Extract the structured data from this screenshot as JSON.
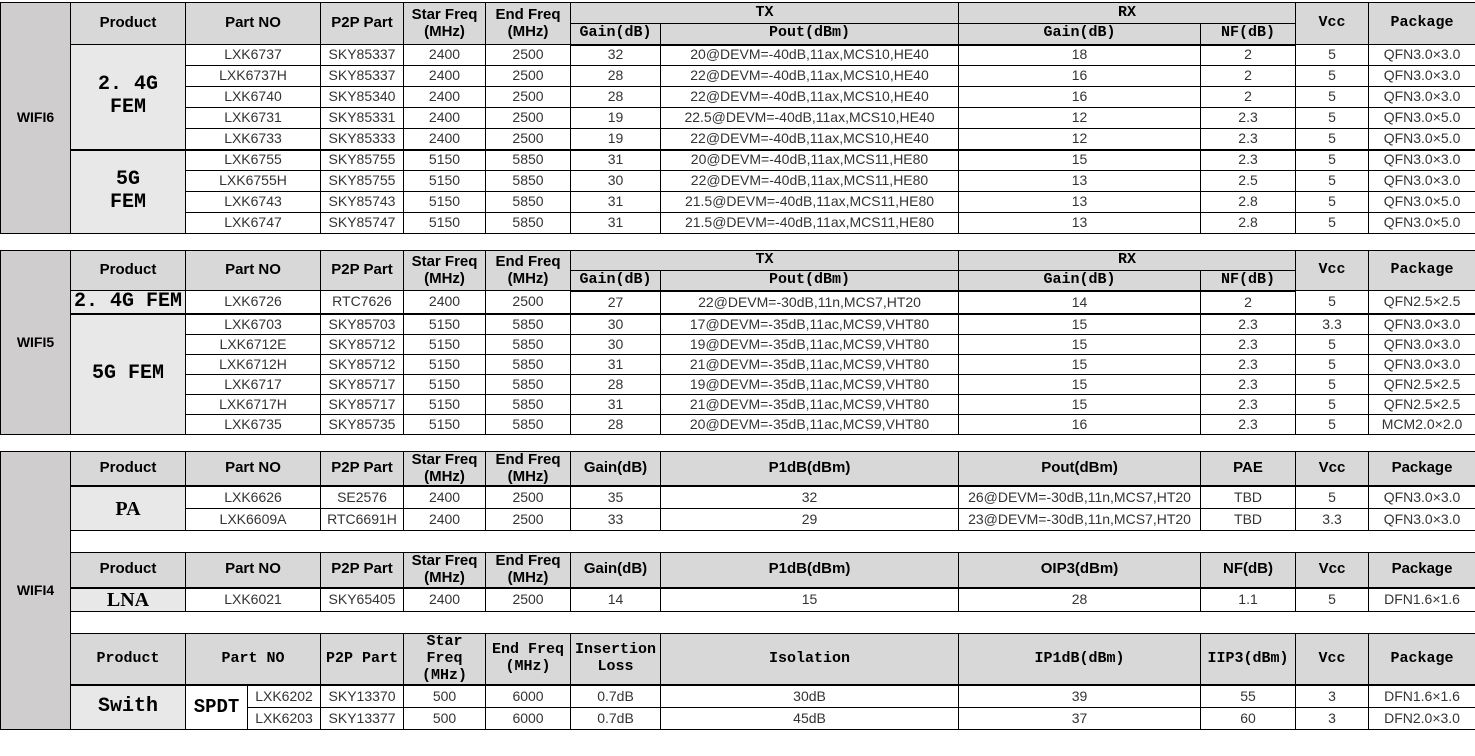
{
  "colors": {
    "header_bg": "#d8d8d8",
    "product_bg": "#e9e8e8",
    "side_label_bg": "#cfcdcd",
    "border": "#000000"
  },
  "wifi6": {
    "label": "WIFI6",
    "header": {
      "product": "Product",
      "part_no": "Part NO",
      "p2p_part": "P2P Part",
      "star_freq": "Star Freq\n(MHz)",
      "end_freq": "End Freq\n(MHz)",
      "tx": "TX",
      "rx": "RX",
      "tx_gain": "Gain(dB)",
      "tx_pout": "Pout(dBm)",
      "rx_gain": "Gain(dB)",
      "rx_nf": "NF(dB)",
      "vcc": "Vcc",
      "package": "Package"
    },
    "groups": [
      {
        "product": "2. 4G\nFEM",
        "rows": [
          [
            "LXK6737",
            "SKY85337",
            "2400",
            "2500",
            "32",
            "20@DEVM=-40dB,11ax,MCS10,HE40",
            "18",
            "2",
            "5",
            "QFN3.0×3.0"
          ],
          [
            "LXK6737H",
            "SKY85337",
            "2400",
            "2500",
            "28",
            "22@DEVM=-40dB,11ax,MCS10,HE40",
            "16",
            "2",
            "5",
            "QFN3.0×3.0"
          ],
          [
            "LXK6740",
            "SKY85340",
            "2400",
            "2500",
            "28",
            "22@DEVM=-40dB,11ax,MCS10,HE40",
            "16",
            "2",
            "5",
            "QFN3.0×3.0"
          ],
          [
            "LXK6731",
            "SKY85331",
            "2400",
            "2500",
            "19",
            "22.5@DEVM=-40dB,11ax,MCS10,HE40",
            "12",
            "2.3",
            "5",
            "QFN3.0×5.0"
          ],
          [
            "LXK6733",
            "SKY85333",
            "2400",
            "2500",
            "19",
            "22@DEVM=-40dB,11ax,MCS10,HE40",
            "12",
            "2.3",
            "5",
            "QFN3.0×5.0"
          ]
        ]
      },
      {
        "product": "5G\nFEM",
        "rows": [
          [
            "LXK6755",
            "SKY85755",
            "5150",
            "5850",
            "31",
            "20@DEVM=-40dB,11ax,MCS11,HE80",
            "15",
            "2.3",
            "5",
            "QFN3.0×3.0"
          ],
          [
            "LXK6755H",
            "SKY85755",
            "5150",
            "5850",
            "30",
            "22@DEVM=-40dB,11ax,MCS11,HE80",
            "13",
            "2.5",
            "5",
            "QFN3.0×3.0"
          ],
          [
            "LXK6743",
            "SKY85743",
            "5150",
            "5850",
            "31",
            "21.5@DEVM=-40dB,11ax,MCS11,HE80",
            "13",
            "2.8",
            "5",
            "QFN3.0×5.0"
          ],
          [
            "LXK6747",
            "SKY85747",
            "5150",
            "5850",
            "31",
            "21.5@DEVM=-40dB,11ax,MCS11,HE80",
            "13",
            "2.8",
            "5",
            "QFN3.0×5.0"
          ]
        ]
      }
    ]
  },
  "wifi5": {
    "label": "WIFI5",
    "header": {
      "product": "Product",
      "part_no": "Part NO",
      "p2p_part": "P2P Part",
      "star_freq": "Star Freq\n(MHz)",
      "end_freq": "End Freq\n(MHz)",
      "tx": "TX",
      "rx": "RX",
      "tx_gain": "Gain(dB)",
      "tx_pout": "Pout(dBm)",
      "rx_gain": "Gain(dB)",
      "rx_nf": "NF(dB)",
      "vcc": "Vcc",
      "package": "Package"
    },
    "groups": [
      {
        "product": "2. 4G FEM",
        "rows": [
          [
            "LXK6726",
            "RTC7626",
            "2400",
            "2500",
            "27",
            "22@DEVM=-30dB,11n,MCS7,HT20",
            "14",
            "2",
            "5",
            "QFN2.5×2.5"
          ]
        ]
      },
      {
        "product": "5G FEM",
        "rows": [
          [
            "LXK6703",
            "SKY85703",
            "5150",
            "5850",
            "30",
            "17@DEVM=-35dB,11ac,MCS9,VHT80",
            "15",
            "2.3",
            "3.3",
            "QFN3.0×3.0"
          ],
          [
            "LXK6712E",
            "SKY85712",
            "5150",
            "5850",
            "30",
            "19@DEVM=-35dB,11ac,MCS9,VHT80",
            "15",
            "2.3",
            "5",
            "QFN3.0×3.0"
          ],
          [
            "LXK6712H",
            "SKY85712",
            "5150",
            "5850",
            "31",
            "21@DEVM=-35dB,11ac,MCS9,VHT80",
            "15",
            "2.3",
            "5",
            "QFN3.0×3.0"
          ],
          [
            "LXK6717",
            "SKY85717",
            "5150",
            "5850",
            "28",
            "19@DEVM=-35dB,11ac,MCS9,VHT80",
            "15",
            "2.3",
            "5",
            "QFN2.5×2.5"
          ],
          [
            "LXK6717H",
            "SKY85717",
            "5150",
            "5850",
            "31",
            "21@DEVM=-35dB,11ac,MCS9,VHT80",
            "15",
            "2.3",
            "5",
            "QFN2.5×2.5"
          ],
          [
            "LXK6735",
            "SKY85735",
            "5150",
            "5850",
            "28",
            "20@DEVM=-35dB,11ac,MCS9,VHT80",
            "16",
            "2.3",
            "5",
            "MCM2.0×2.0"
          ]
        ]
      }
    ]
  },
  "wifi4": {
    "label": "WIFI4",
    "pa": {
      "header": {
        "product": "Product",
        "part_no": "Part NO",
        "p2p_part": "P2P Part",
        "star_freq": "Star Freq\n(MHz)",
        "end_freq": "End Freq\n(MHz)",
        "gain": "Gain(dB)",
        "p1db": "P1dB(dBm)",
        "pout": "Pout(dBm)",
        "pae": "PAE",
        "vcc": "Vcc",
        "package": "Package"
      },
      "groups": [
        {
          "product": "PA",
          "rows": [
            [
              "LXK6626",
              "SE2576",
              "2400",
              "2500",
              "35",
              "32",
              "26@DEVM=-30dB,11n,MCS7,HT20",
              "TBD",
              "5",
              "QFN3.0×3.0"
            ],
            [
              "LXK6609A",
              "RTC6691H",
              "2400",
              "2500",
              "33",
              "29",
              "23@DEVM=-30dB,11n,MCS7,HT20",
              "TBD",
              "3.3",
              "QFN3.0×3.0"
            ]
          ]
        }
      ]
    },
    "lna": {
      "header": {
        "product": "Product",
        "part_no": "Part NO",
        "p2p_part": "P2P Part",
        "star_freq": "Star Freq\n(MHz)",
        "end_freq": "End Freq\n(MHz)",
        "gain": "Gain(dB)",
        "p1db": "P1dB(dBm)",
        "oip3": "OIP3(dBm)",
        "nf": "NF(dB)",
        "vcc": "Vcc",
        "package": "Package"
      },
      "groups": [
        {
          "product": "LNA",
          "rows": [
            [
              "LXK6021",
              "SKY65405",
              "2400",
              "2500",
              "14",
              "15",
              "28",
              "1.1",
              "5",
              "DFN1.6×1.6"
            ]
          ]
        }
      ]
    },
    "switch": {
      "header": {
        "product": "Product",
        "part_no": "Part NO",
        "p2p_part": "P2P Part",
        "star_freq": "Star\nFreq\n(MHz)",
        "end_freq": "End Freq\n(MHz)",
        "insertion_loss": "Insertion\nLoss",
        "isolation": "Isolation",
        "ip1db": "IP1dB(dBm)",
        "iip3": "IIP3(dBm)",
        "vcc": "Vcc",
        "package": "Package"
      },
      "groups": [
        {
          "product": "Swith",
          "sub": "SPDT",
          "rows": [
            [
              "LXK6202",
              "SKY13370",
              "500",
              "6000",
              "0.7dB",
              "30dB",
              "39",
              "55",
              "3",
              "DFN1.6×1.6"
            ],
            [
              "LXK6203",
              "SKY13377",
              "500",
              "6000",
              "0.7dB",
              "45dB",
              "37",
              "60",
              "3",
              "DFN2.0×3.0"
            ]
          ]
        }
      ]
    }
  }
}
